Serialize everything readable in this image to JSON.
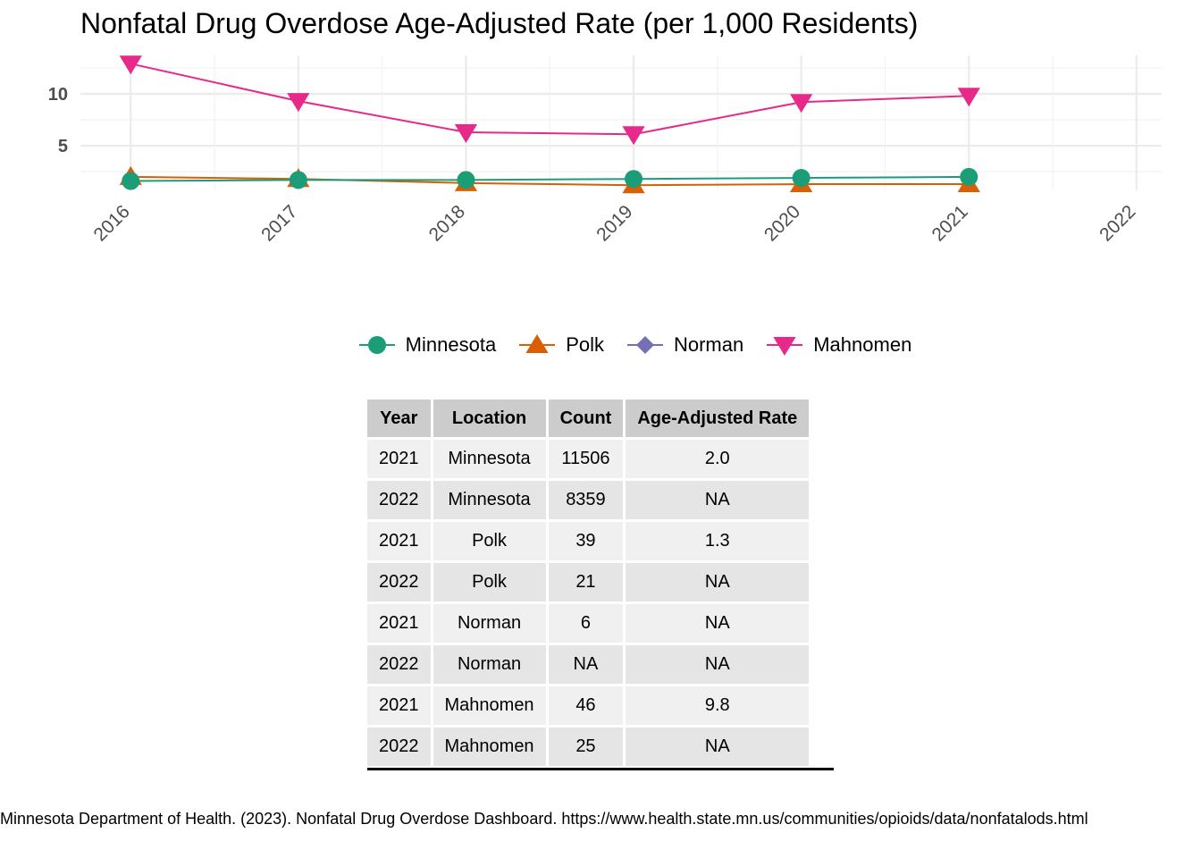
{
  "chart_data": {
    "type": "line",
    "title": "Nonfatal Drug Overdose Age-Adjusted Rate (per 1,000 Residents)",
    "xlabel": "",
    "ylabel": "",
    "x": [
      2016,
      2017,
      2018,
      2019,
      2020,
      2021
    ],
    "x_ticks": [
      "2016",
      "2017",
      "2018",
      "2019",
      "2020",
      "2021",
      "2022"
    ],
    "y_ticks": [
      5,
      10
    ],
    "xlim": [
      2015.7,
      2022.15
    ],
    "ylim": [
      0.7,
      13.7
    ],
    "grid": true,
    "legend_position": "bottom",
    "series": [
      {
        "name": "Minnesota",
        "color": "#1b9e77",
        "marker": "circle",
        "values": [
          1.6,
          1.7,
          1.7,
          1.8,
          1.9,
          2.0
        ]
      },
      {
        "name": "Polk",
        "color": "#d95f02",
        "marker": "triangle-up",
        "values": [
          2.0,
          1.8,
          1.4,
          1.2,
          1.3,
          1.3
        ]
      },
      {
        "name": "Norman",
        "color": "#7570b3",
        "marker": "diamond",
        "values": [
          null,
          null,
          null,
          null,
          null,
          null
        ]
      },
      {
        "name": "Mahnomen",
        "color": "#e7298a",
        "marker": "triangle-down",
        "values": [
          12.9,
          9.3,
          6.3,
          6.1,
          9.2,
          9.8
        ]
      }
    ]
  },
  "table": {
    "headers": [
      "Year",
      "Location",
      "Count",
      "Age-Adjusted Rate"
    ],
    "rows": [
      [
        "2021",
        "Minnesota",
        "11506",
        "2.0"
      ],
      [
        "2022",
        "Minnesota",
        "8359",
        "NA"
      ],
      [
        "2021",
        "Polk",
        "39",
        "1.3"
      ],
      [
        "2022",
        "Polk",
        "21",
        "NA"
      ],
      [
        "2021",
        "Norman",
        "6",
        "NA"
      ],
      [
        "2022",
        "Norman",
        "NA",
        "NA"
      ],
      [
        "2021",
        "Mahnomen",
        "46",
        "9.8"
      ],
      [
        "2022",
        "Mahnomen",
        "25",
        "NA"
      ]
    ]
  },
  "caption": "Minnesota Department of Health. (2023). Nonfatal Drug Overdose Dashboard. https://www.health.state.mn.us/communities/opioids/data/nonfatalods.html"
}
